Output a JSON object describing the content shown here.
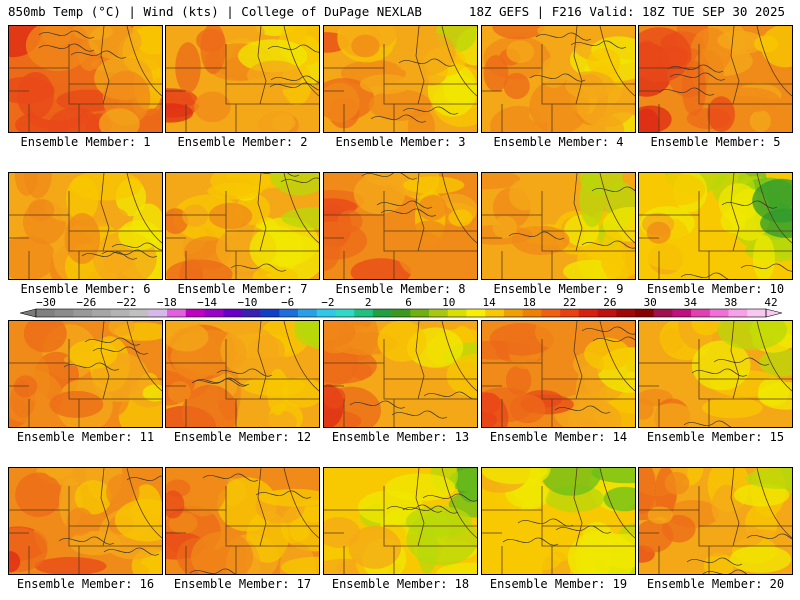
{
  "header": {
    "left_title": "850mb Temp (°C) | Wind (kts) | College of DuPage NEXLAB",
    "right_title": "18Z GEFS | F216 Valid: 18Z TUE SEP 30 2025"
  },
  "colorbar": {
    "labels": [
      "−30",
      "−26",
      "−22",
      "−18",
      "−14",
      "−10",
      "−6",
      "−2",
      "2",
      "6",
      "10",
      "14",
      "18",
      "22",
      "26",
      "30",
      "34",
      "38",
      "42"
    ],
    "colors": [
      "#808080",
      "#8c8c8c",
      "#999999",
      "#a6a6a6",
      "#b3b3b3",
      "#c0c0c0",
      "#d8b8e8",
      "#e060e0",
      "#c000c0",
      "#9a00c8",
      "#6a00c8",
      "#3a20b0",
      "#1040c8",
      "#1c6edc",
      "#28a0e8",
      "#30c8e8",
      "#30d8c8",
      "#20c080",
      "#20a040",
      "#3a9a20",
      "#70b010",
      "#a8c810",
      "#d8e000",
      "#f8f000",
      "#f8c800",
      "#f0a000",
      "#f08000",
      "#f06010",
      "#e84010",
      "#d82010",
      "#c01010",
      "#a00808",
      "#880000",
      "#a01050",
      "#c01080",
      "#e040b0",
      "#f070d8",
      "#f8a0e8",
      "#f8c8f0"
    ]
  },
  "members": [
    {
      "caption": "Ensemble Member: 1",
      "warmth": 0.75
    },
    {
      "caption": "Ensemble Member: 2",
      "warmth": 0.6
    },
    {
      "caption": "Ensemble Member: 3",
      "warmth": 0.55
    },
    {
      "caption": "Ensemble Member: 4",
      "warmth": 0.58
    },
    {
      "caption": "Ensemble Member: 5",
      "warmth": 0.72
    },
    {
      "caption": "Ensemble Member: 6",
      "warmth": 0.55
    },
    {
      "caption": "Ensemble Member: 7",
      "warmth": 0.5
    },
    {
      "caption": "Ensemble Member: 8",
      "warmth": 0.65
    },
    {
      "caption": "Ensemble Member: 9",
      "warmth": 0.5
    },
    {
      "caption": "Ensemble Member: 10",
      "warmth": 0.35
    },
    {
      "caption": "Ensemble Member: 11",
      "warmth": 0.62
    },
    {
      "caption": "Ensemble Member: 12",
      "warmth": 0.55
    },
    {
      "caption": "Ensemble Member: 13",
      "warmth": 0.58
    },
    {
      "caption": "Ensemble Member: 14",
      "warmth": 0.68
    },
    {
      "caption": "Ensemble Member: 15",
      "warmth": 0.5
    },
    {
      "caption": "Ensemble Member: 16",
      "warmth": 0.65
    },
    {
      "caption": "Ensemble Member: 17",
      "warmth": 0.62
    },
    {
      "caption": "Ensemble Member: 18",
      "warmth": 0.35
    },
    {
      "caption": "Ensemble Member: 19",
      "warmth": 0.38
    },
    {
      "caption": "Ensemble Member: 20",
      "warmth": 0.55
    }
  ]
}
